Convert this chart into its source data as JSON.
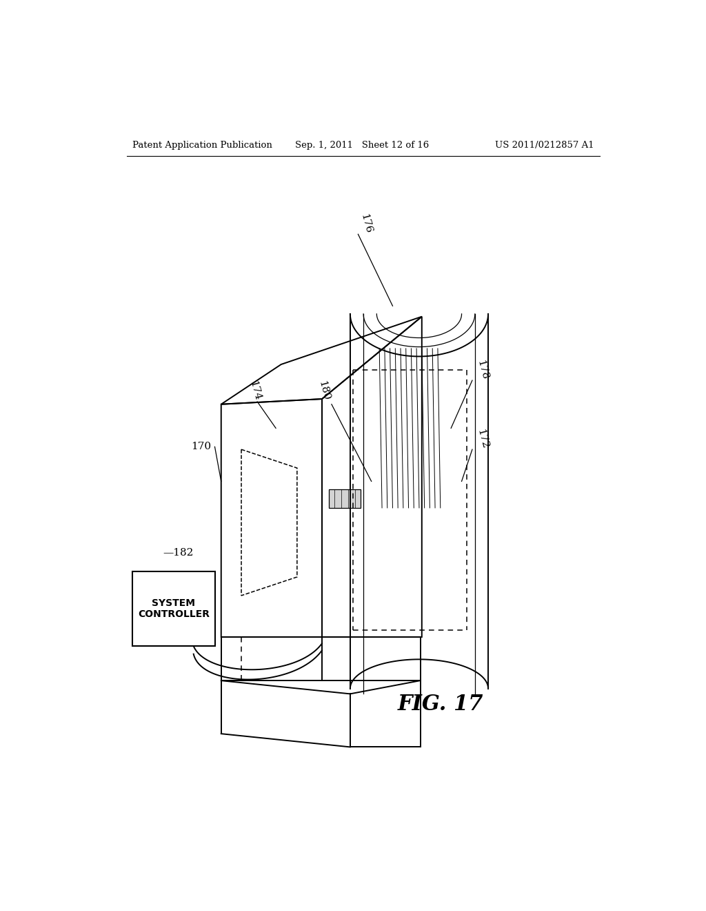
{
  "bg_color": "#ffffff",
  "header_left": "Patent Application Publication",
  "header_center": "Sep. 1, 2011   Sheet 12 of 16",
  "header_right": "US 2011/0212857 A1",
  "fig_label": "FIG. 17",
  "lw_main": 1.4,
  "lw_thin": 0.9,
  "lw_dashed": 1.1
}
